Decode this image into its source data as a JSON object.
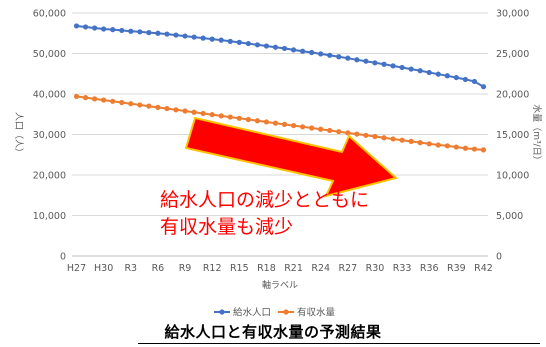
{
  "chart_data": {
    "type": "line",
    "title": "給水人口と有収水量の予測結果",
    "xlabel": "軸ラベル",
    "ylabel_left": "人口（人）",
    "ylabel_right": "水量（m³/日）",
    "ylim_left": [
      0,
      60000
    ],
    "ylim_right": [
      0,
      30000
    ],
    "yticks_left": [
      "0",
      "10,000",
      "20,000",
      "30,000",
      "40,000",
      "50,000",
      "60,000"
    ],
    "yticks_right": [
      "0",
      "5,000",
      "10,000",
      "15,000",
      "20,000",
      "25,000",
      "30,000"
    ],
    "x": [
      "H27",
      "H28",
      "H29",
      "H30",
      "R1",
      "R2",
      "R3",
      "R4",
      "R5",
      "R6",
      "R7",
      "R8",
      "R9",
      "R10",
      "R11",
      "R12",
      "R13",
      "R14",
      "R15",
      "R16",
      "R17",
      "R18",
      "R19",
      "R20",
      "R21",
      "R22",
      "R23",
      "R24",
      "R25",
      "R26",
      "R27",
      "R28",
      "R29",
      "R30",
      "R31",
      "R32",
      "R33",
      "R34",
      "R35",
      "R36",
      "R37",
      "R38",
      "R39",
      "R40",
      "R41",
      "R42"
    ],
    "x_tick_labels": [
      "H27",
      "H30",
      "R3",
      "R6",
      "R9",
      "R12",
      "R15",
      "R18",
      "R21",
      "R24",
      "R27",
      "R30",
      "R33",
      "R36",
      "R39",
      "R42"
    ],
    "series": [
      {
        "name": "給水人口",
        "axis": "left",
        "color": "#4472c4",
        "values": [
          56800,
          56550,
          56300,
          56050,
          55900,
          55700,
          55500,
          55350,
          55150,
          55000,
          54800,
          54550,
          54300,
          54050,
          53800,
          53550,
          53300,
          53000,
          52750,
          52450,
          52150,
          51850,
          51550,
          51250,
          50900,
          50550,
          50250,
          49900,
          49550,
          49200,
          48850,
          48450,
          48100,
          47700,
          47350,
          46950,
          46550,
          46150,
          45750,
          45300,
          44900,
          44500,
          44050,
          43600,
          43100,
          41800
        ]
      },
      {
        "name": "有収水量",
        "axis": "right",
        "color": "#ed7d31",
        "values": [
          19700,
          19550,
          19400,
          19250,
          19100,
          18950,
          18800,
          18650,
          18500,
          18350,
          18200,
          18050,
          17900,
          17750,
          17600,
          17450,
          17300,
          17150,
          17000,
          16850,
          16700,
          16550,
          16400,
          16250,
          16100,
          15950,
          15800,
          15650,
          15500,
          15350,
          15200,
          15050,
          14900,
          14750,
          14600,
          14450,
          14300,
          14150,
          14000,
          13850,
          13700,
          13600,
          13450,
          13300,
          13200,
          13100
        ]
      }
    ],
    "legend_position": "bottom",
    "grid": true,
    "annotation": {
      "lines": [
        "給水人口の減少とともに",
        "有収水量も減少"
      ],
      "arrow_color": "#ff0000",
      "arrow_outline": "#ffc000"
    }
  }
}
